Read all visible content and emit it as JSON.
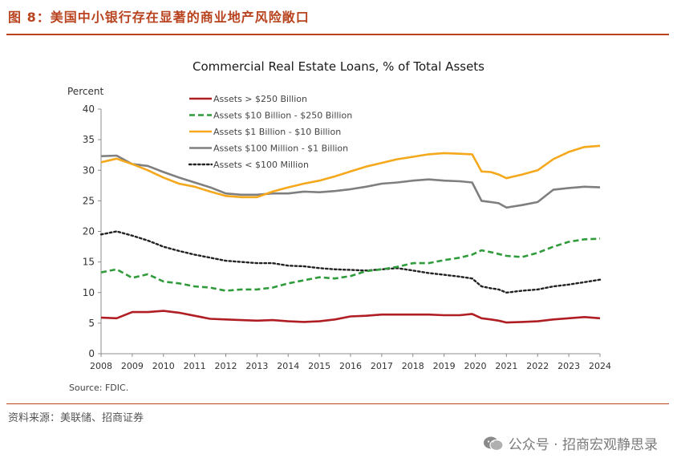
{
  "header": {
    "figure_title": "图 8：美国中小银行存在显著的商业地产风险敞口"
  },
  "footer": {
    "data_source": "资料来源：美联储、招商证券",
    "watermark": "公众号 · 招商宏观静思录",
    "watermark_icon": "wechat-icon"
  },
  "colors": {
    "accent": "#b8431e",
    "series_gt250b": "#b01e23",
    "series_10b_250b": "#2f9b3a",
    "series_1b_10b": "#f5a81c",
    "series_100m_1b": "#7f7f7f",
    "series_lt100m": "#222222"
  },
  "chart_data": {
    "type": "line",
    "title": "Commercial Real Estate Loans, % of Total Assets",
    "ylabel": "Percent",
    "xlabel": "",
    "source_note": "Source: FDIC.",
    "xlim": [
      2008,
      2024
    ],
    "ylim": [
      0,
      40
    ],
    "yticks": [
      0,
      5,
      10,
      15,
      20,
      25,
      30,
      35,
      40
    ],
    "x_tick_labels": [
      "2008",
      "2009",
      "2010",
      "2011",
      "2012",
      "2013",
      "2014",
      "2015",
      "2016",
      "2017",
      "2018",
      "2019",
      "2020",
      "2021",
      "2022",
      "2023",
      "2024"
    ],
    "legend_position": "top-left",
    "x": [
      2008.0,
      2008.5,
      2009.0,
      2009.5,
      2010.0,
      2010.5,
      2011.0,
      2011.5,
      2012.0,
      2012.5,
      2013.0,
      2013.5,
      2014.0,
      2014.5,
      2015.0,
      2015.5,
      2016.0,
      2016.5,
      2017.0,
      2017.5,
      2018.0,
      2018.5,
      2019.0,
      2019.5,
      2019.9,
      2020.2,
      2020.5,
      2020.75,
      2021.0,
      2021.5,
      2022.0,
      2022.5,
      2023.0,
      2023.5,
      2024.0
    ],
    "series": [
      {
        "name": "Assets > $250 Billion",
        "style": "solid",
        "values": [
          5.9,
          5.8,
          6.8,
          6.8,
          7.0,
          6.7,
          6.2,
          5.7,
          5.6,
          5.5,
          5.4,
          5.5,
          5.3,
          5.2,
          5.3,
          5.6,
          6.1,
          6.2,
          6.4,
          6.4,
          6.4,
          6.4,
          6.3,
          6.3,
          6.5,
          5.8,
          5.6,
          5.4,
          5.1,
          5.2,
          5.3,
          5.6,
          5.8,
          6.0,
          5.8
        ]
      },
      {
        "name": "Assets  $10 Billion - $250 Billion",
        "style": "dashed",
        "values": [
          13.3,
          13.8,
          12.4,
          13.0,
          11.8,
          11.5,
          11.0,
          10.8,
          10.3,
          10.5,
          10.5,
          10.8,
          11.5,
          12.0,
          12.5,
          12.3,
          12.7,
          13.5,
          13.8,
          14.2,
          14.8,
          14.8,
          15.3,
          15.7,
          16.2,
          16.9,
          16.6,
          16.3,
          16.0,
          15.8,
          16.5,
          17.5,
          18.3,
          18.7,
          18.8
        ]
      },
      {
        "name": "Assets $1 Billion - $10 Billion",
        "style": "solid",
        "values": [
          31.3,
          31.9,
          31.0,
          30.0,
          28.8,
          27.8,
          27.3,
          26.5,
          25.8,
          25.6,
          25.6,
          26.5,
          27.2,
          27.8,
          28.3,
          29.0,
          29.8,
          30.6,
          31.2,
          31.8,
          32.2,
          32.6,
          32.8,
          32.7,
          32.6,
          29.8,
          29.7,
          29.3,
          28.7,
          29.3,
          30.0,
          31.8,
          33.0,
          33.8,
          34.0
        ]
      },
      {
        "name": "Assets $100 Million - $1 Billion",
        "style": "solid",
        "values": [
          32.3,
          32.4,
          31.0,
          30.7,
          29.7,
          28.8,
          28.0,
          27.2,
          26.2,
          26.0,
          26.0,
          26.2,
          26.2,
          26.5,
          26.4,
          26.6,
          26.9,
          27.3,
          27.8,
          28.0,
          28.3,
          28.5,
          28.3,
          28.2,
          28.0,
          25.0,
          24.8,
          24.6,
          23.9,
          24.3,
          24.8,
          26.8,
          27.1,
          27.3,
          27.2
        ]
      },
      {
        "name": "Assets < $100 Million",
        "style": "dotted",
        "values": [
          19.5,
          20.0,
          19.3,
          18.5,
          17.5,
          16.8,
          16.2,
          15.7,
          15.2,
          15.0,
          14.8,
          14.8,
          14.4,
          14.3,
          14.0,
          13.8,
          13.7,
          13.6,
          13.8,
          14.0,
          13.6,
          13.2,
          12.9,
          12.6,
          12.3,
          11.0,
          10.7,
          10.5,
          10.0,
          10.3,
          10.5,
          11.0,
          11.3,
          11.7,
          12.1
        ]
      }
    ]
  }
}
